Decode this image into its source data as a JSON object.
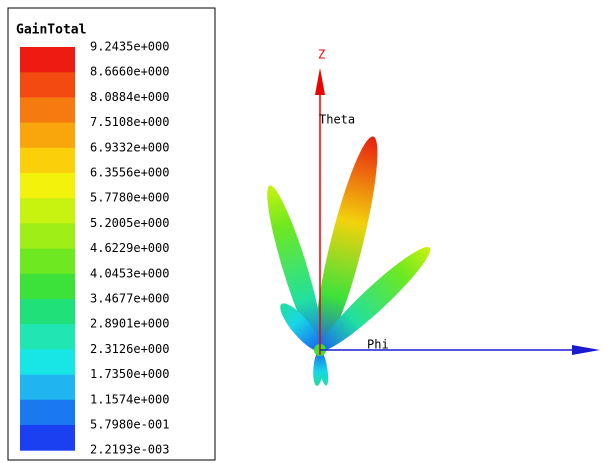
{
  "legend": {
    "title": "GainTotal",
    "labels": [
      "9.2435e+000",
      "8.6660e+000",
      "8.0884e+000",
      "7.5108e+000",
      "6.9332e+000",
      "6.3556e+000",
      "5.7780e+000",
      "5.2005e+000",
      "4.6229e+000",
      "4.0453e+000",
      "3.4677e+000",
      "2.8901e+000",
      "2.3126e+000",
      "1.7350e+000",
      "1.1574e+000",
      "5.7980e-001",
      "2.2193e-003"
    ],
    "colors": [
      "#ee1c10",
      "#f24a10",
      "#f57a10",
      "#f9a60c",
      "#fbcf0a",
      "#f2f20c",
      "#c8f210",
      "#a0ee18",
      "#6ee820",
      "#3ce23a",
      "#20e07a",
      "#20e6b4",
      "#18e6e6",
      "#20b4f0",
      "#1a78f0",
      "#1a40f2"
    ]
  },
  "axes": {
    "z": "Z",
    "theta": "Theta",
    "phi": "Phi"
  }
}
